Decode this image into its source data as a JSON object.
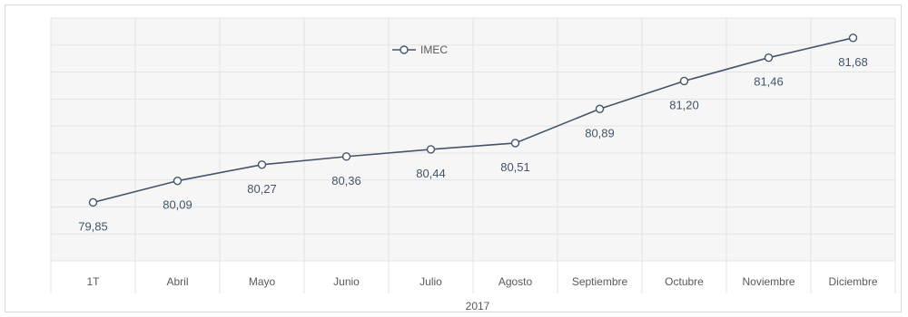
{
  "chart_data": {
    "type": "line",
    "title": "",
    "xlabel": "",
    "ylabel": "",
    "categories": [
      "1T",
      "Abril",
      "Mayo",
      "Junio",
      "Julio",
      "Agosto",
      "Septiembre",
      "Octubre",
      "Noviembre",
      "Diciembre"
    ],
    "category_group": "2017",
    "series": [
      {
        "name": "IMEC",
        "values": [
          79.85,
          80.09,
          80.27,
          80.36,
          80.44,
          80.51,
          80.89,
          81.2,
          81.46,
          81.68
        ],
        "labels": [
          "79,85",
          "80,09",
          "80,27",
          "80,36",
          "80,44",
          "80,51",
          "80,89",
          "81,20",
          "81,46",
          "81,68"
        ]
      }
    ],
    "legend_position": "top-center",
    "grid": true,
    "colors": {
      "series": "#44546a",
      "grid": "#e3e3e3",
      "background": "#f6f6f6"
    }
  }
}
